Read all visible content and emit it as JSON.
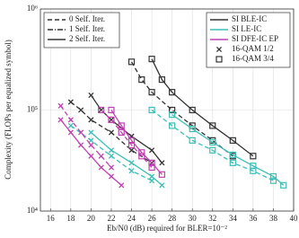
{
  "chart_data": {
    "type": "line",
    "xlabel": "Eb/N0 (dB) required for BLER=10⁻²",
    "ylabel": "Complexity (FLOPs per equalized symbol)",
    "xlim": [
      15,
      40
    ],
    "xticks": [
      16,
      18,
      20,
      22,
      24,
      26,
      28,
      30,
      32,
      34,
      36,
      38,
      40
    ],
    "ylim": [
      10000,
      1000000
    ],
    "log_y": true,
    "grid": true,
    "yticks": [
      {
        "value": 10000,
        "label": "10⁴"
      },
      {
        "value": 100000,
        "label": "10⁵"
      },
      {
        "value": 1000000,
        "label": "10⁶"
      }
    ],
    "legend_iter": [
      {
        "label": "0 Self. Iter.",
        "color": "#333333",
        "dash": "5,3"
      },
      {
        "label": "1 Self. Iter.",
        "color": "#333333",
        "dash": "6,2,1,2"
      },
      {
        "label": "2 Self. Iter.",
        "color": "#333333",
        "dash": ""
      }
    ],
    "legend_algo": [
      {
        "label": "SI BLE-IC",
        "color": "#333333",
        "dash": "",
        "marker": ""
      },
      {
        "label": "SI LE-IC",
        "color": "#3bbfb5",
        "dash": "",
        "marker": ""
      },
      {
        "label": "SI DFE-IC EP",
        "color": "#c040b0",
        "dash": "",
        "marker": ""
      },
      {
        "label": "16-QAM 1/2",
        "color": "#333333",
        "dash": "none",
        "marker": "x"
      },
      {
        "label": "16-QAM 3/4",
        "color": "#333333",
        "dash": "none",
        "marker": "square"
      }
    ],
    "series": [
      {
        "color": "#333333",
        "dash": "5,3",
        "marker": "square",
        "x": [
          24,
          25,
          26,
          28,
          30,
          32,
          34
        ],
        "values": [
          300000,
          200000,
          150000,
          100000,
          70000,
          50000,
          35000
        ]
      },
      {
        "color": "#333333",
        "dash": "",
        "marker": "square",
        "x": [
          26,
          27,
          28,
          30,
          32,
          34,
          36
        ],
        "values": [
          320000,
          200000,
          150000,
          100000,
          70000,
          50000,
          35000
        ]
      },
      {
        "color": "#333333",
        "dash": "5,3",
        "marker": "x",
        "x": [
          18,
          19,
          20,
          22,
          24,
          26
        ],
        "values": [
          120000,
          100000,
          80000,
          60000,
          40000,
          30000
        ]
      },
      {
        "color": "#333333",
        "dash": "",
        "marker": "x",
        "x": [
          20,
          21,
          22,
          24,
          26,
          27
        ],
        "values": [
          140000,
          100000,
          80000,
          55000,
          40000,
          30000
        ]
      },
      {
        "color": "#3bbfb5",
        "dash": "5,3",
        "marker": "square",
        "x": [
          26,
          28,
          30,
          32,
          34,
          36,
          38
        ],
        "values": [
          100000,
          70000,
          50000,
          40000,
          30000,
          25000,
          20000
        ]
      },
      {
        "color": "#3bbfb5",
        "dash": "",
        "marker": "square",
        "x": [
          28,
          30,
          32,
          34,
          36,
          38,
          39
        ],
        "values": [
          90000,
          65000,
          48000,
          36000,
          28000,
          22000,
          18000
        ]
      },
      {
        "color": "#3bbfb5",
        "dash": "5,3",
        "marker": "x",
        "x": [
          18,
          20,
          22,
          24,
          26
        ],
        "values": [
          70000,
          50000,
          35000,
          25000,
          20000
        ]
      },
      {
        "color": "#3bbfb5",
        "dash": "",
        "marker": "x",
        "x": [
          20,
          22,
          24,
          26,
          27
        ],
        "values": [
          60000,
          40000,
          30000,
          22000,
          18000
        ]
      },
      {
        "color": "#c040b0",
        "dash": "5,3",
        "marker": "square",
        "x": [
          21,
          22,
          23,
          24,
          25,
          26
        ],
        "values": [
          100000,
          80000,
          60000,
          45000,
          35000,
          27000
        ]
      },
      {
        "color": "#c040b0",
        "dash": "",
        "marker": "square",
        "x": [
          22,
          23,
          24,
          25,
          26,
          27
        ],
        "values": [
          100000,
          70000,
          50000,
          38000,
          30000,
          23000
        ]
      },
      {
        "color": "#c040b0",
        "dash": "5,3",
        "marker": "x",
        "x": [
          17,
          18,
          19,
          20,
          21,
          22
        ],
        "values": [
          110000,
          80000,
          60000,
          45000,
          35000,
          27000
        ]
      },
      {
        "color": "#c040b0",
        "dash": "",
        "marker": "x",
        "x": [
          17,
          18,
          19,
          20,
          21,
          22,
          23
        ],
        "values": [
          80000,
          60000,
          45000,
          35000,
          27000,
          22000,
          18000
        ]
      }
    ]
  }
}
